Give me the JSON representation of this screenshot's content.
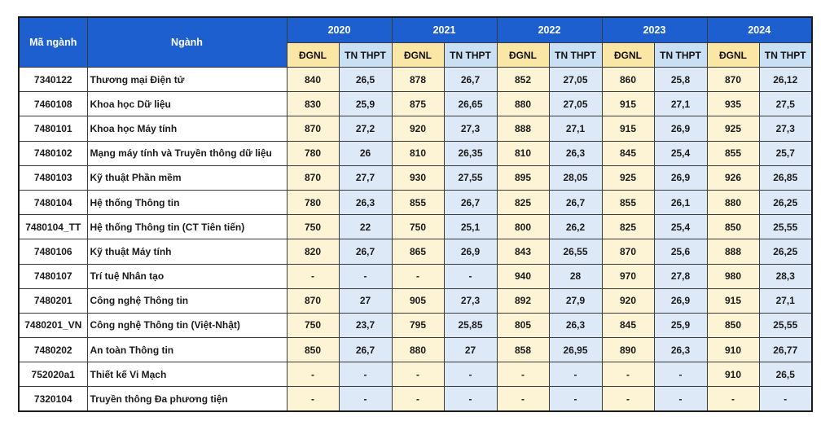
{
  "header": {
    "code_label": "Mã ngành",
    "major_label": "Ngành",
    "years": [
      "2020",
      "2021",
      "2022",
      "2023",
      "2024"
    ],
    "sub_dgnl": "ĐGNL",
    "sub_tn": "TN THPT"
  },
  "rows": [
    {
      "code": "7340122",
      "name": "Thương mại Điện tử",
      "scores": [
        "840",
        "26,5",
        "878",
        "26,7",
        "852",
        "27,05",
        "860",
        "25,8",
        "870",
        "26,12"
      ]
    },
    {
      "code": "7460108",
      "name": "Khoa học Dữ liệu",
      "scores": [
        "830",
        "25,9",
        "875",
        "26,65",
        "880",
        "27,05",
        "915",
        "27,1",
        "935",
        "27,5"
      ]
    },
    {
      "code": "7480101",
      "name": "Khoa học Máy tính",
      "scores": [
        "870",
        "27,2",
        "920",
        "27,3",
        "888",
        "27,1",
        "915",
        "26,9",
        "925",
        "27,3"
      ]
    },
    {
      "code": "7480102",
      "name": "Mạng máy tính và Truyền thông dữ liệu",
      "scores": [
        "780",
        "26",
        "810",
        "26,35",
        "810",
        "26,3",
        "845",
        "25,4",
        "855",
        "25,7"
      ]
    },
    {
      "code": "7480103",
      "name": "Kỹ thuật Phần mềm",
      "scores": [
        "870",
        "27,7",
        "930",
        "27,55",
        "895",
        "28,05",
        "925",
        "26,9",
        "926",
        "26,85"
      ]
    },
    {
      "code": "7480104",
      "name": "Hệ thống Thông tin",
      "scores": [
        "780",
        "26,3",
        "855",
        "26,7",
        "825",
        "26,7",
        "855",
        "26,1",
        "880",
        "26,25"
      ]
    },
    {
      "code": "7480104_TT",
      "name": "Hệ thống Thông tin (CT Tiên tiến)",
      "scores": [
        "750",
        "22",
        "750",
        "25,1",
        "800",
        "26,2",
        "825",
        "25,4",
        "850",
        "25,55"
      ]
    },
    {
      "code": "7480106",
      "name": "Kỹ thuật Máy tính",
      "scores": [
        "820",
        "26,7",
        "865",
        "26,9",
        "843",
        "26,55",
        "870",
        "25,6",
        "888",
        "26,25"
      ]
    },
    {
      "code": "7480107",
      "name": "Trí tuệ Nhân tạo",
      "scores": [
        "-",
        "-",
        "-",
        "-",
        "940",
        "28",
        "970",
        "27,8",
        "980",
        "28,3"
      ]
    },
    {
      "code": "7480201",
      "name": "Công nghệ Thông tin",
      "scores": [
        "870",
        "27",
        "905",
        "27,3",
        "892",
        "27,9",
        "920",
        "26,9",
        "915",
        "27,1"
      ]
    },
    {
      "code": "7480201_VN",
      "name": "Công nghệ Thông tin (Việt-Nhật)",
      "scores": [
        "750",
        "23,7",
        "795",
        "25,85",
        "805",
        "26,3",
        "845",
        "25,9",
        "850",
        "25,55"
      ]
    },
    {
      "code": "7480202",
      "name": "An toàn Thông tin",
      "scores": [
        "850",
        "26,7",
        "880",
        "27",
        "858",
        "26,95",
        "890",
        "26,3",
        "910",
        "26,77"
      ]
    },
    {
      "code": "752020a1",
      "name": "Thiết kế Vi Mạch",
      "scores": [
        "-",
        "-",
        "-",
        "-",
        "-",
        "-",
        "-",
        "-",
        "910",
        "26,5"
      ]
    },
    {
      "code": "7320104",
      "name": "Truyền thông Đa phương tiện",
      "scores": [
        "-",
        "-",
        "-",
        "-",
        "-",
        "-",
        "-",
        "-",
        "-",
        "-"
      ]
    }
  ]
}
